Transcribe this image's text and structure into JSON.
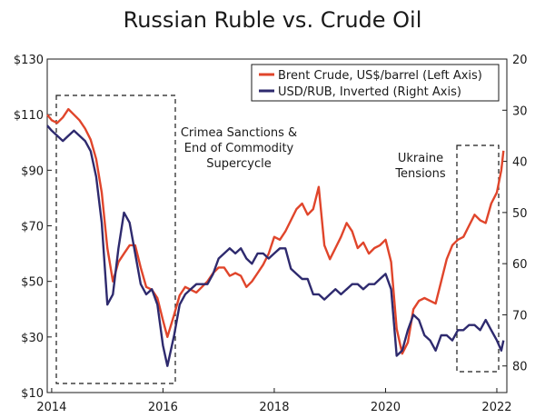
{
  "chart_data": {
    "type": "line",
    "title": "Russian Ruble vs. Crude Oil",
    "x_ticks": [
      "2014",
      "2016",
      "2018",
      "2020",
      "2022"
    ],
    "x_range": [
      2013.92,
      2022.18
    ],
    "left_axis": {
      "ticks": [
        "$10",
        "$30",
        "$50",
        "$70",
        "$90",
        "$110",
        "$130"
      ],
      "range": [
        10,
        130
      ]
    },
    "right_axis": {
      "inverted": true,
      "ticks": [
        "20",
        "30",
        "40",
        "50",
        "60",
        "70",
        "80"
      ],
      "range": [
        20,
        85.2
      ]
    },
    "legend_position": "top-right",
    "series": [
      {
        "name": "Brent Crude, US$/barrel (Left Axis)",
        "axis": "left",
        "color": "#e0452b",
        "x": [
          2013.92,
          2014.0,
          2014.1,
          2014.2,
          2014.3,
          2014.4,
          2014.5,
          2014.6,
          2014.7,
          2014.8,
          2014.9,
          2015.0,
          2015.1,
          2015.2,
          2015.3,
          2015.4,
          2015.5,
          2015.6,
          2015.7,
          2015.8,
          2015.9,
          2016.0,
          2016.08,
          2016.2,
          2016.3,
          2016.4,
          2016.5,
          2016.6,
          2016.7,
          2016.8,
          2016.9,
          2017.0,
          2017.1,
          2017.2,
          2017.3,
          2017.4,
          2017.5,
          2017.6,
          2017.7,
          2017.8,
          2017.9,
          2018.0,
          2018.1,
          2018.2,
          2018.3,
          2018.4,
          2018.5,
          2018.6,
          2018.7,
          2018.8,
          2018.9,
          2019.0,
          2019.1,
          2019.2,
          2019.3,
          2019.4,
          2019.5,
          2019.6,
          2019.7,
          2019.8,
          2019.9,
          2020.0,
          2020.1,
          2020.2,
          2020.3,
          2020.4,
          2020.5,
          2020.6,
          2020.7,
          2020.8,
          2020.9,
          2021.0,
          2021.1,
          2021.2,
          2021.3,
          2021.4,
          2021.5,
          2021.6,
          2021.7,
          2021.8,
          2021.9,
          2022.0,
          2022.08,
          2022.12
        ],
        "values": [
          110,
          108,
          107,
          109,
          112,
          110,
          108,
          105,
          101,
          94,
          82,
          62,
          50,
          57,
          60,
          63,
          63,
          55,
          48,
          47,
          44,
          36,
          30,
          38,
          45,
          48,
          47,
          46,
          48,
          50,
          53,
          55,
          55,
          52,
          53,
          52,
          48,
          50,
          53,
          56,
          60,
          66,
          65,
          68,
          72,
          76,
          78,
          74,
          76,
          84,
          63,
          58,
          62,
          66,
          71,
          68,
          62,
          64,
          60,
          62,
          63,
          65,
          57,
          33,
          24,
          28,
          40,
          43,
          44,
          43,
          42,
          50,
          58,
          63,
          65,
          66,
          70,
          74,
          72,
          71,
          78,
          82,
          90,
          97
        ],
        "points": 84
      },
      {
        "name": "USD/RUB, Inverted (Right Axis)",
        "axis": "right",
        "color": "#2e2a6e",
        "x": [
          2013.92,
          2014.0,
          2014.1,
          2014.2,
          2014.3,
          2014.4,
          2014.5,
          2014.6,
          2014.7,
          2014.8,
          2014.9,
          2015.0,
          2015.1,
          2015.2,
          2015.3,
          2015.4,
          2015.5,
          2015.6,
          2015.7,
          2015.8,
          2015.9,
          2016.0,
          2016.08,
          2016.2,
          2016.3,
          2016.4,
          2016.5,
          2016.6,
          2016.7,
          2016.8,
          2016.9,
          2017.0,
          2017.1,
          2017.2,
          2017.3,
          2017.4,
          2017.5,
          2017.6,
          2017.7,
          2017.8,
          2017.9,
          2018.0,
          2018.1,
          2018.2,
          2018.3,
          2018.4,
          2018.5,
          2018.6,
          2018.7,
          2018.8,
          2018.9,
          2019.0,
          2019.1,
          2019.2,
          2019.3,
          2019.4,
          2019.5,
          2019.6,
          2019.7,
          2019.8,
          2019.9,
          2020.0,
          2020.1,
          2020.2,
          2020.3,
          2020.4,
          2020.5,
          2020.6,
          2020.7,
          2020.8,
          2020.9,
          2021.0,
          2021.1,
          2021.2,
          2021.3,
          2021.4,
          2021.5,
          2021.6,
          2021.7,
          2021.8,
          2021.9,
          2022.0,
          2022.08,
          2022.12
        ],
        "values": [
          33,
          34,
          35,
          36,
          35,
          34,
          35,
          36,
          38,
          43,
          52,
          68,
          66,
          57,
          50,
          52,
          58,
          64,
          66,
          65,
          68,
          76,
          80,
          74,
          68,
          66,
          65,
          64,
          64,
          64,
          62,
          59,
          58,
          57,
          58,
          57,
          59,
          60,
          58,
          58,
          59,
          58,
          57,
          57,
          61,
          62,
          63,
          63,
          66,
          66,
          67,
          66,
          65,
          66,
          65,
          64,
          64,
          65,
          64,
          64,
          63,
          62,
          65,
          78,
          77,
          73,
          70,
          71,
          74,
          75,
          77,
          74,
          74,
          75,
          73,
          73,
          72,
          72,
          73,
          71,
          73,
          75,
          77,
          75
        ]
      }
    ],
    "annotations": [
      {
        "lines": [
          "Crimea Sanctions &",
          "End of Commodity",
          "Supercycle"
        ]
      },
      {
        "lines": [
          "Ukraine",
          "Tensions"
        ]
      }
    ],
    "grid": false
  }
}
